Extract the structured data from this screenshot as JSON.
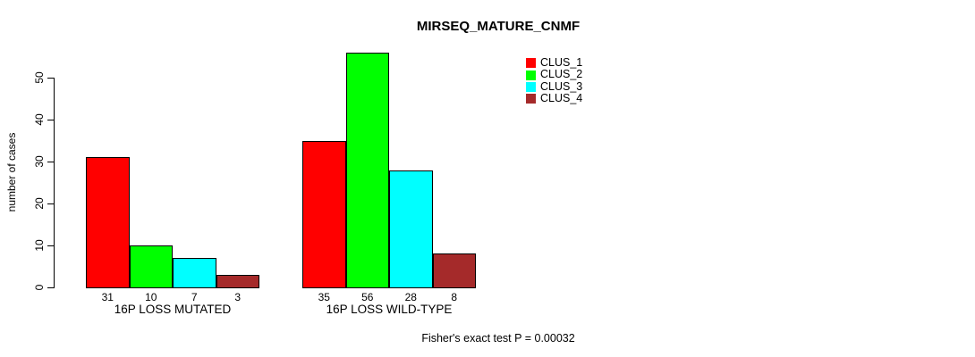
{
  "chart_data": {
    "type": "bar",
    "title": "MIRSEQ_MATURE_CNMF",
    "ylabel": "number of cases",
    "xlabel": "",
    "categories": [
      "16P LOSS MUTATED",
      "16P LOSS WILD-TYPE"
    ],
    "series": [
      {
        "name": "CLUS_1",
        "color": "#FF0000",
        "values": [
          31,
          35
        ]
      },
      {
        "name": "CLUS_2",
        "color": "#00FF00",
        "values": [
          10,
          56
        ]
      },
      {
        "name": "CLUS_3",
        "color": "#00FFFF",
        "values": [
          7,
          28
        ]
      },
      {
        "name": "CLUS_4",
        "color": "#A52A2A",
        "values": [
          3,
          8
        ]
      }
    ],
    "bar_labels": [
      [
        31,
        10,
        7,
        3
      ],
      [
        35,
        56,
        28,
        8
      ]
    ],
    "yticks": [
      0,
      10,
      20,
      30,
      40,
      50
    ],
    "ylim": [
      0,
      56
    ],
    "grid": false,
    "legend_position": "top-right",
    "axis_color": "#000000",
    "background_color": "#FFFFFF",
    "footnote": "Fisher's exact test P = 0.00032"
  }
}
